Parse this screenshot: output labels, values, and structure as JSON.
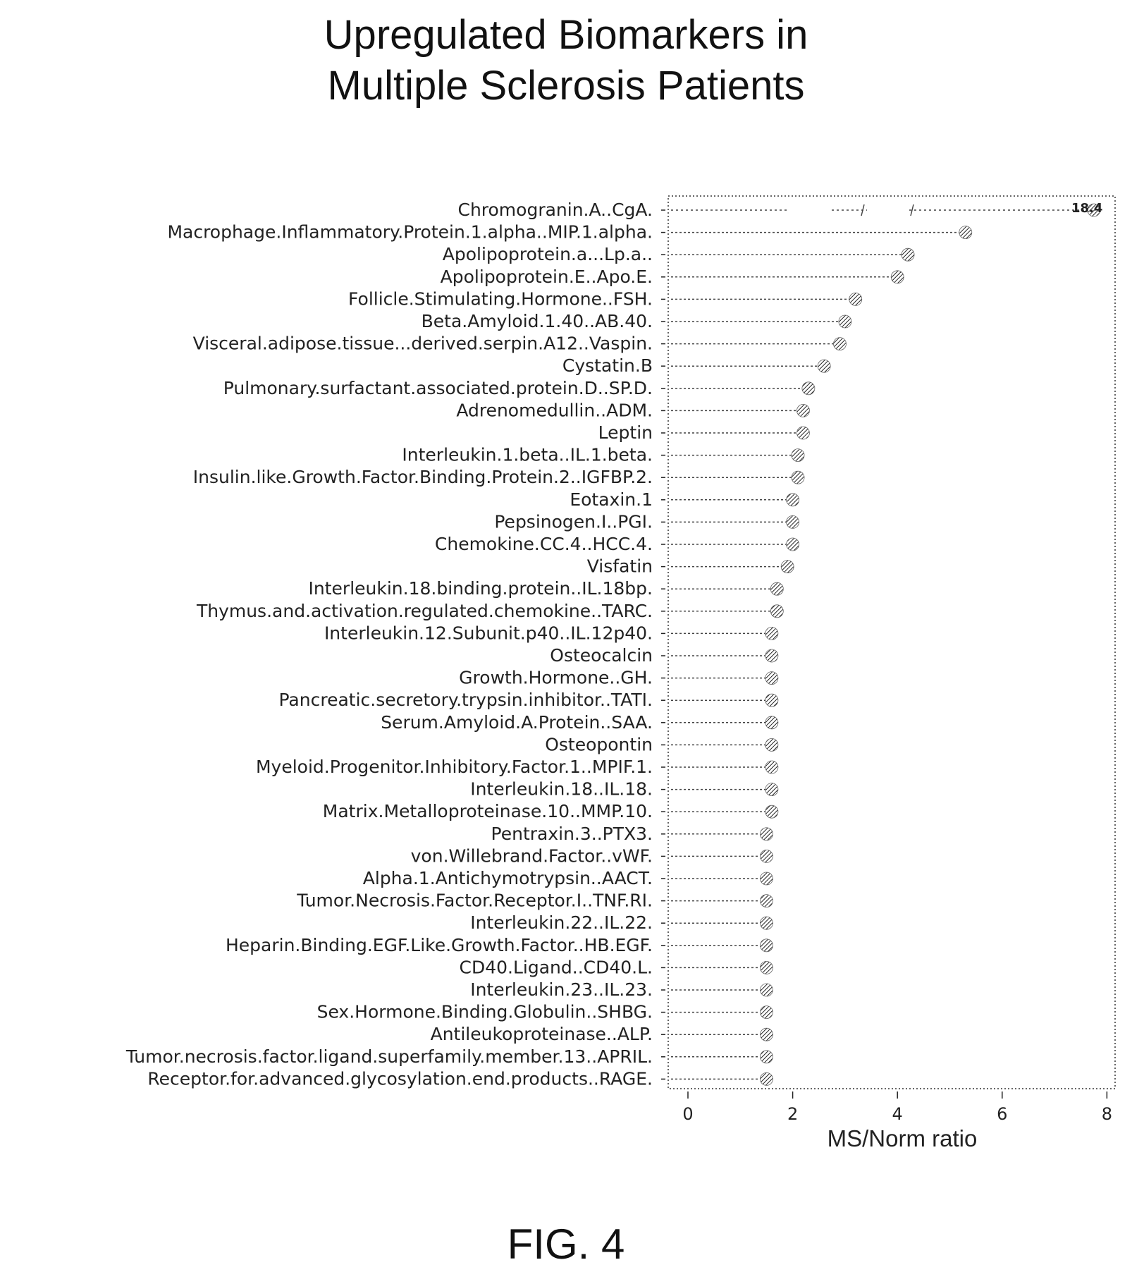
{
  "chart_data": {
    "type": "lollipop",
    "title_lines": [
      "Upregulated Biomarkers in",
      "Multiple Sclerosis Patients"
    ],
    "xlabel": "MS/Norm ratio",
    "ylabel": "",
    "xlim": [
      -0.4,
      8.2
    ],
    "xticks": [
      0,
      2,
      4,
      6,
      8
    ],
    "grid": false,
    "axis_break_after": 7.0,
    "annotation": "18.4",
    "categories": [
      "Chromogranin.A..CgA.",
      "Macrophage.Inflammatory.Protein.1.alpha..MIP.1.alpha.",
      "Apolipoprotein.a...Lp.a..",
      "Apolipoprotein.E..Apo.E.",
      "Follicle.Stimulating.Hormone..FSH.",
      "Beta.Amyloid.1.40..AB.40.",
      "Visceral.adipose.tissue...derived.serpin.A12..Vaspin.",
      "Cystatin.B",
      "Pulmonary.surfactant.associated.protein.D..SP.D.",
      "Adrenomedullin..ADM.",
      "Leptin",
      "Interleukin.1.beta..IL.1.beta.",
      "Insulin.like.Growth.Factor.Binding.Protein.2..IGFBP.2.",
      "Eotaxin.1",
      "Pepsinogen.I..PGI.",
      "Chemokine.CC.4..HCC.4.",
      "Visfatin",
      "Interleukin.18.binding.protein..IL.18bp.",
      "Thymus.and.activation.regulated.chemokine..TARC.",
      "Interleukin.12.Subunit.p40..IL.12p40.",
      "Osteocalcin",
      "Growth.Hormone..GH.",
      "Pancreatic.secretory.trypsin.inhibitor..TATI.",
      "Serum.Amyloid.A.Protein..SAA.",
      "Osteopontin",
      "Myeloid.Progenitor.Inhibitory.Factor.1..MPIF.1.",
      "Interleukin.18..IL.18.",
      "Matrix.Metalloproteinase.10..MMP.10.",
      "Pentraxin.3..PTX3.",
      "von.Willebrand.Factor..vWF.",
      "Alpha.1.Antichymotrypsin..AACT.",
      "Tumor.Necrosis.Factor.Receptor.I..TNF.RI.",
      "Interleukin.22..IL.22.",
      "Heparin.Binding.EGF.Like.Growth.Factor..HB.EGF.",
      "CD40.Ligand..CD40.L.",
      "Interleukin.23..IL.23.",
      "Sex.Hormone.Binding.Globulin..SHBG.",
      "Antileukoproteinase..ALP.",
      "Tumor.necrosis.factor.ligand.superfamily.member.13..APRIL.",
      "Receptor.for.advanced.glycosylation.end.products..RAGE."
    ],
    "values": [
      18.4,
      5.3,
      4.2,
      4.0,
      3.2,
      3.0,
      2.9,
      2.6,
      2.3,
      2.2,
      2.2,
      2.1,
      2.1,
      2.0,
      2.0,
      2.0,
      1.9,
      1.7,
      1.7,
      1.6,
      1.6,
      1.6,
      1.6,
      1.6,
      1.6,
      1.6,
      1.6,
      1.6,
      1.5,
      1.5,
      1.5,
      1.5,
      1.5,
      1.5,
      1.5,
      1.5,
      1.5,
      1.5,
      1.5,
      1.5
    ]
  },
  "figure_label": "FIG. 4"
}
